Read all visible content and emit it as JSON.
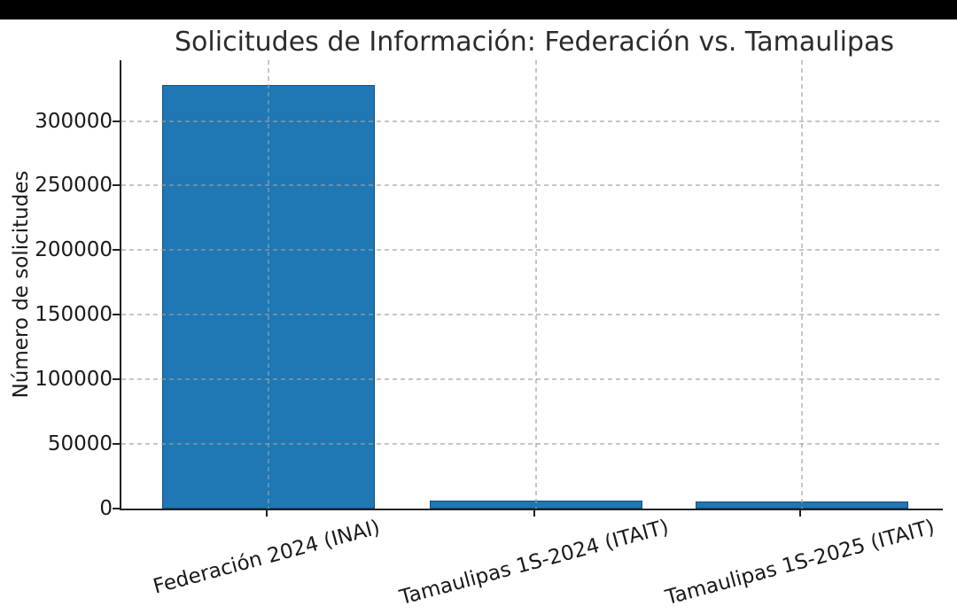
{
  "chart_data": {
    "type": "bar",
    "title": "Solicitudes de Información: Federación vs. Tamaulipas",
    "ylabel": "Número de solicitudes",
    "xlabel": "",
    "categories": [
      "Federación 2024 (INAI)",
      "Tamaulipas 1S-2024 (ITAIT)",
      "Tamaulipas 1S-2025 (ITAIT)"
    ],
    "values": [
      328000,
      6200,
      5800
    ],
    "yticks": [
      0,
      50000,
      100000,
      150000,
      200000,
      250000,
      300000
    ],
    "ylim": [
      0,
      347000
    ],
    "grid": "dashed gridlines on both axes, drawn over the bars",
    "legend": "none",
    "x_tick_label_rotation_deg": 15,
    "bar_color": "#1f77b4",
    "bar_edge_color": "#14527f",
    "gridline_color": "#a0a0a0",
    "axis_color": "#222222",
    "text_color": "#1a1a1a",
    "background_color": "#ffffff",
    "top_banner_color": "#000000"
  }
}
